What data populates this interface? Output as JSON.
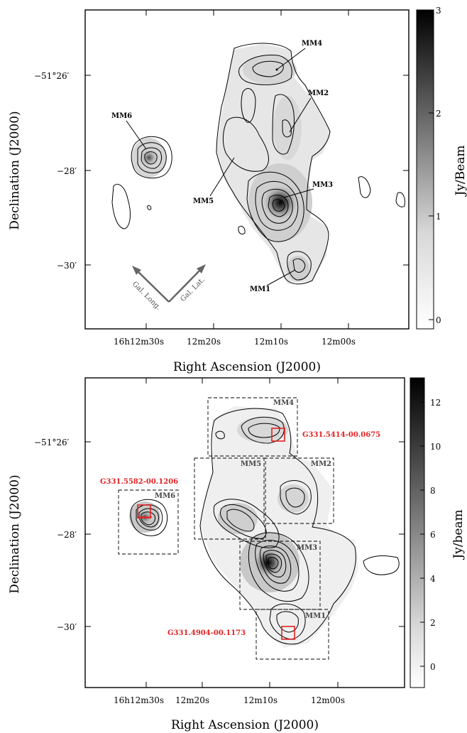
{
  "panel_top": {
    "ra_ticks": [
      "16h12m30s",
      "12m20s",
      "12m10s",
      "12m00s"
    ],
    "dec_ticks": [
      "−51°26′",
      "−28′",
      "−30′"
    ],
    "xlabel": "Right Ascension (J2000)",
    "ylabel": "Declination (J2000)",
    "colorbar_label": "Jy/Beam",
    "colorbar_ticks": [
      "0",
      "1",
      "2",
      "3"
    ],
    "sources": [
      "MM4",
      "MM2",
      "MM6",
      "MM3",
      "MM5",
      "MM1"
    ],
    "arrows": [
      "Gal. Long.",
      "Gal. Lat."
    ]
  },
  "panel_bottom": {
    "ra_ticks": [
      "16h12m30s",
      "12m20s",
      "12m10s",
      "12m00s"
    ],
    "dec_ticks": [
      "−51°26′",
      "−28′",
      "−30′"
    ],
    "xlabel": "Right Ascension (J2000)",
    "ylabel": "Declination (J2000)",
    "colorbar_label": "Jy/beam",
    "colorbar_ticks": [
      "0",
      "2",
      "4",
      "6",
      "8",
      "10",
      "12"
    ],
    "regions": [
      "MM4",
      "MM5",
      "MM2",
      "MM6",
      "MM3",
      "MM1"
    ],
    "masers": [
      "G331.5414-00.0675",
      "G331.5582-00.1206",
      "G331.4904-00.1173"
    ]
  },
  "colors": {
    "maser": "#e32222",
    "contour": "#000000"
  }
}
